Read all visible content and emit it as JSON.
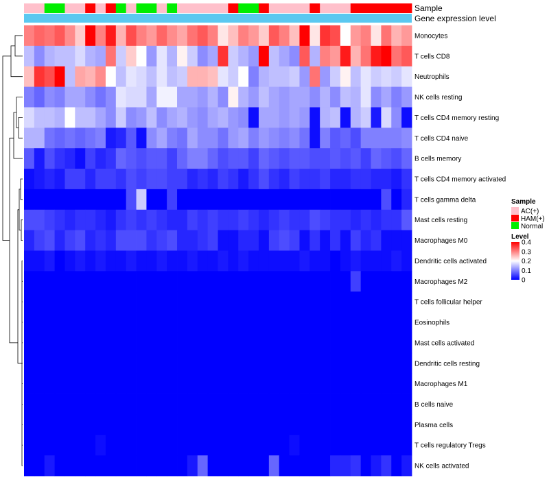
{
  "chart_data": {
    "type": "heatmap",
    "annotation_labels": [
      "Sample",
      "Gene expression level"
    ],
    "rows": [
      "Monocytes",
      "T cells CD8",
      "Neutrophils",
      "NK cells resting",
      "T cells CD4 memory resting",
      "T cells CD4 naive",
      "B cells memory",
      "T cells CD4 memory activated",
      "T cells gamma delta",
      "Mast cells resting",
      "Macrophages M0",
      "Dendritic cells activated",
      "Macrophages M2",
      "T cells follicular helper",
      "Eosinophils",
      "Mast cells activated",
      "Dendritic cells resting",
      "Macrophages M1",
      "B cells naive",
      "Plasma cells",
      "T cells regulatory  Tregs",
      "NK cells activated"
    ],
    "samples": [
      "AC(+)",
      "AC(+)",
      "Normal",
      "Normal",
      "AC(+)",
      "AC(+)",
      "HAM(+)",
      "AC(+)",
      "HAM(+)",
      "Normal",
      "AC(+)",
      "Normal",
      "Normal",
      "AC(+)",
      "Normal",
      "AC(+)",
      "AC(+)",
      "AC(+)",
      "AC(+)",
      "AC(+)",
      "HAM(+)",
      "Normal",
      "Normal",
      "HAM(+)",
      "AC(+)",
      "AC(+)",
      "AC(+)",
      "AC(+)",
      "HAM(+)",
      "AC(+)",
      "AC(+)",
      "AC(+)",
      "HAM(+)",
      "HAM(+)",
      "HAM(+)",
      "HAM(+)",
      "HAM(+)",
      "HAM(+)"
    ],
    "values": [
      [
        0.3,
        0.32,
        0.31,
        0.33,
        0.29,
        0.24,
        0.4,
        0.3,
        0.38,
        0.26,
        0.34,
        0.3,
        0.28,
        0.32,
        0.29,
        0.27,
        0.31,
        0.33,
        0.3,
        0.22,
        0.25,
        0.3,
        0.28,
        0.24,
        0.33,
        0.3,
        0.25,
        0.4,
        0.22,
        0.36,
        0.34,
        0.2,
        0.28,
        0.3,
        0.22,
        0.31,
        0.26,
        0.28
      ],
      [
        0.15,
        0.11,
        0.14,
        0.15,
        0.15,
        0.17,
        0.14,
        0.13,
        0.31,
        0.16,
        0.24,
        0.2,
        0.12,
        0.18,
        0.14,
        0.21,
        0.16,
        0.11,
        0.13,
        0.36,
        0.16,
        0.14,
        0.12,
        0.4,
        0.15,
        0.13,
        0.11,
        0.33,
        0.14,
        0.3,
        0.28,
        0.38,
        0.26,
        0.31,
        0.38,
        0.4,
        0.31,
        0.33
      ],
      [
        0.25,
        0.36,
        0.34,
        0.4,
        0.15,
        0.27,
        0.26,
        0.29,
        0.2,
        0.15,
        0.18,
        0.17,
        0.15,
        0.18,
        0.15,
        0.16,
        0.26,
        0.26,
        0.25,
        0.18,
        0.16,
        0.2,
        0.1,
        0.14,
        0.15,
        0.15,
        0.16,
        0.12,
        0.31,
        0.12,
        0.16,
        0.21,
        0.15,
        0.18,
        0.16,
        0.17,
        0.16,
        0.18
      ],
      [
        0.1,
        0.08,
        0.11,
        0.1,
        0.13,
        0.13,
        0.11,
        0.09,
        0.11,
        0.18,
        0.17,
        0.17,
        0.13,
        0.19,
        0.19,
        0.13,
        0.13,
        0.12,
        0.14,
        0.11,
        0.21,
        0.14,
        0.12,
        0.15,
        0.13,
        0.12,
        0.13,
        0.13,
        0.11,
        0.14,
        0.11,
        0.15,
        0.14,
        0.18,
        0.11,
        0.13,
        0.1,
        0.12
      ],
      [
        0.17,
        0.15,
        0.15,
        0.14,
        0.2,
        0.15,
        0.15,
        0.13,
        0.11,
        0.16,
        0.11,
        0.12,
        0.15,
        0.11,
        0.13,
        0.14,
        0.12,
        0.11,
        0.13,
        0.14,
        0.12,
        0.11,
        0.01,
        0.13,
        0.13,
        0.12,
        0.13,
        0.12,
        0.01,
        0.14,
        0.15,
        0.01,
        0.14,
        0.16,
        0.02,
        0.17,
        0.11,
        0.01
      ],
      [
        0.14,
        0.14,
        0.09,
        0.08,
        0.09,
        0.08,
        0.09,
        0.1,
        0.02,
        0.03,
        0.07,
        0.01,
        0.11,
        0.13,
        0.1,
        0.09,
        0.13,
        0.11,
        0.11,
        0.09,
        0.12,
        0.13,
        0.1,
        0.12,
        0.11,
        0.1,
        0.11,
        0.09,
        0.01,
        0.1,
        0.07,
        0.08,
        0.06,
        0.1,
        0.1,
        0.1,
        0.1,
        0.11
      ],
      [
        0.07,
        0.02,
        0.06,
        0.04,
        0.03,
        0.01,
        0.05,
        0.03,
        0.04,
        0.08,
        0.07,
        0.06,
        0.07,
        0.07,
        0.05,
        0.08,
        0.1,
        0.1,
        0.08,
        0.06,
        0.07,
        0.07,
        0.05,
        0.08,
        0.07,
        0.06,
        0.07,
        0.07,
        0.06,
        0.06,
        0.07,
        0.06,
        0.07,
        0.05,
        0.08,
        0.07,
        0.06,
        0.08
      ],
      [
        0.01,
        0.02,
        0.03,
        0.02,
        0.05,
        0.05,
        0.03,
        0.05,
        0.05,
        0.04,
        0.06,
        0.05,
        0.06,
        0.06,
        0.05,
        0.05,
        0.03,
        0.04,
        0.03,
        0.05,
        0.04,
        0.02,
        0.04,
        0.06,
        0.04,
        0.03,
        0.05,
        0.04,
        0.04,
        0.05,
        0.03,
        0.03,
        0.04,
        0.04,
        0.03,
        0.03,
        0.02,
        0.04
      ],
      [
        0.0,
        0.0,
        0.0,
        0.0,
        0.0,
        0.0,
        0.0,
        0.0,
        0.0,
        0.0,
        0.06,
        0.16,
        0.0,
        0.0,
        0.05,
        0.0,
        0.0,
        0.0,
        0.0,
        0.0,
        0.0,
        0.0,
        0.0,
        0.0,
        0.0,
        0.0,
        0.0,
        0.0,
        0.0,
        0.0,
        0.0,
        0.0,
        0.0,
        0.0,
        0.0,
        0.06,
        0.0,
        0.03
      ],
      [
        0.06,
        0.06,
        0.05,
        0.04,
        0.03,
        0.04,
        0.04,
        0.03,
        0.02,
        0.04,
        0.05,
        0.04,
        0.05,
        0.04,
        0.03,
        0.03,
        0.05,
        0.04,
        0.05,
        0.04,
        0.04,
        0.05,
        0.04,
        0.03,
        0.04,
        0.05,
        0.04,
        0.04,
        0.06,
        0.05,
        0.04,
        0.04,
        0.03,
        0.04,
        0.03,
        0.04,
        0.04,
        0.07
      ],
      [
        0.03,
        0.05,
        0.06,
        0.03,
        0.05,
        0.06,
        0.03,
        0.04,
        0.03,
        0.06,
        0.06,
        0.06,
        0.04,
        0.05,
        0.06,
        0.03,
        0.03,
        0.04,
        0.05,
        0.01,
        0.01,
        0.03,
        0.03,
        0.01,
        0.05,
        0.06,
        0.05,
        0.01,
        0.04,
        0.01,
        0.04,
        0.01,
        0.05,
        0.03,
        0.04,
        0.01,
        0.01,
        0.01
      ],
      [
        0.01,
        0.01,
        0.02,
        0.0,
        0.01,
        0.02,
        0.01,
        0.02,
        0.01,
        0.01,
        0.02,
        0.01,
        0.01,
        0.02,
        0.01,
        0.01,
        0.02,
        0.01,
        0.01,
        0.02,
        0.01,
        0.02,
        0.01,
        0.01,
        0.01,
        0.01,
        0.01,
        0.02,
        0.01,
        0.01,
        0.0,
        0.01,
        0.02,
        0.01,
        0.01,
        0.01,
        0.02,
        0.01
      ],
      [
        0.0,
        0.0,
        0.0,
        0.0,
        0.0,
        0.0,
        0.0,
        0.0,
        0.0,
        0.0,
        0.0,
        0.0,
        0.0,
        0.0,
        0.0,
        0.0,
        0.0,
        0.0,
        0.0,
        0.0,
        0.0,
        0.0,
        0.0,
        0.0,
        0.0,
        0.0,
        0.0,
        0.0,
        0.0,
        0.0,
        0.0,
        0.0,
        0.05,
        0.0,
        0.0,
        0.0,
        0.0,
        0.0
      ],
      [
        0.0,
        0.0,
        0.0,
        0.0,
        0.0,
        0.0,
        0.0,
        0.0,
        0.0,
        0.0,
        0.0,
        0.0,
        0.0,
        0.0,
        0.0,
        0.0,
        0.0,
        0.0,
        0.0,
        0.0,
        0.0,
        0.0,
        0.0,
        0.0,
        0.0,
        0.0,
        0.0,
        0.0,
        0.0,
        0.0,
        0.0,
        0.0,
        0.0,
        0.0,
        0.0,
        0.0,
        0.0,
        0.0
      ],
      [
        0.0,
        0.0,
        0.0,
        0.0,
        0.0,
        0.0,
        0.0,
        0.0,
        0.0,
        0.0,
        0.0,
        0.0,
        0.0,
        0.0,
        0.0,
        0.0,
        0.0,
        0.0,
        0.0,
        0.0,
        0.0,
        0.0,
        0.0,
        0.0,
        0.0,
        0.0,
        0.0,
        0.0,
        0.0,
        0.0,
        0.0,
        0.0,
        0.0,
        0.0,
        0.0,
        0.0,
        0.0,
        0.0
      ],
      [
        0.0,
        0.0,
        0.0,
        0.0,
        0.0,
        0.0,
        0.0,
        0.0,
        0.0,
        0.0,
        0.0,
        0.0,
        0.0,
        0.0,
        0.0,
        0.0,
        0.0,
        0.0,
        0.0,
        0.0,
        0.0,
        0.0,
        0.0,
        0.0,
        0.0,
        0.0,
        0.0,
        0.0,
        0.0,
        0.0,
        0.0,
        0.0,
        0.0,
        0.0,
        0.0,
        0.0,
        0.0,
        0.0
      ],
      [
        0.0,
        0.0,
        0.0,
        0.0,
        0.0,
        0.0,
        0.0,
        0.0,
        0.0,
        0.0,
        0.0,
        0.0,
        0.0,
        0.0,
        0.0,
        0.0,
        0.0,
        0.0,
        0.0,
        0.0,
        0.0,
        0.0,
        0.0,
        0.0,
        0.0,
        0.0,
        0.0,
        0.0,
        0.0,
        0.0,
        0.0,
        0.0,
        0.0,
        0.0,
        0.0,
        0.0,
        0.0,
        0.0
      ],
      [
        0.0,
        0.0,
        0.0,
        0.0,
        0.0,
        0.0,
        0.0,
        0.0,
        0.0,
        0.0,
        0.0,
        0.0,
        0.0,
        0.0,
        0.0,
        0.0,
        0.0,
        0.0,
        0.0,
        0.0,
        0.0,
        0.0,
        0.0,
        0.0,
        0.0,
        0.0,
        0.0,
        0.0,
        0.0,
        0.0,
        0.0,
        0.0,
        0.0,
        0.0,
        0.0,
        0.0,
        0.0,
        0.0
      ],
      [
        0.0,
        0.0,
        0.0,
        0.0,
        0.0,
        0.0,
        0.0,
        0.0,
        0.0,
        0.0,
        0.0,
        0.0,
        0.0,
        0.0,
        0.0,
        0.0,
        0.0,
        0.0,
        0.0,
        0.0,
        0.0,
        0.0,
        0.0,
        0.0,
        0.0,
        0.0,
        0.0,
        0.0,
        0.0,
        0.0,
        0.0,
        0.0,
        0.0,
        0.0,
        0.0,
        0.0,
        0.0,
        0.0
      ],
      [
        0.0,
        0.0,
        0.0,
        0.0,
        0.0,
        0.0,
        0.0,
        0.0,
        0.0,
        0.0,
        0.0,
        0.0,
        0.0,
        0.0,
        0.0,
        0.0,
        0.0,
        0.0,
        0.0,
        0.0,
        0.0,
        0.0,
        0.0,
        0.0,
        0.0,
        0.0,
        0.0,
        0.0,
        0.0,
        0.0,
        0.0,
        0.0,
        0.0,
        0.0,
        0.0,
        0.0,
        0.0,
        0.0
      ],
      [
        0.0,
        0.0,
        0.0,
        0.0,
        0.0,
        0.0,
        0.0,
        0.01,
        0.0,
        0.0,
        0.0,
        0.0,
        0.0,
        0.0,
        0.0,
        0.0,
        0.0,
        0.0,
        0.0,
        0.0,
        0.0,
        0.0,
        0.0,
        0.0,
        0.0,
        0.0,
        0.01,
        0.0,
        0.0,
        0.0,
        0.0,
        0.0,
        0.0,
        0.0,
        0.0,
        0.0,
        0.0,
        0.0
      ],
      [
        0.0,
        0.0,
        0.02,
        0.0,
        0.0,
        0.0,
        0.0,
        0.0,
        0.0,
        0.0,
        0.0,
        0.0,
        0.0,
        0.0,
        0.0,
        0.0,
        0.02,
        0.08,
        0.0,
        0.0,
        0.0,
        0.0,
        0.0,
        0.0,
        0.08,
        0.0,
        0.0,
        0.0,
        0.0,
        0.0,
        0.03,
        0.03,
        0.04,
        0.0,
        0.02,
        0.04,
        0.0,
        0.02
      ]
    ],
    "legend_sample": {
      "title": "Sample",
      "entries": [
        {
          "label": "AC(+)",
          "color": "#FFC0CB"
        },
        {
          "label": "HAM(+)",
          "color": "#FF0000"
        },
        {
          "label": "Normal",
          "color": "#00EE00"
        }
      ]
    },
    "legend_level": {
      "title": "Level",
      "ticks": [
        "0.4",
        "0.3",
        "0.2",
        "0.1",
        "0"
      ],
      "tick_values": [
        0.4,
        0.3,
        0.2,
        0.1,
        0
      ],
      "range": [
        0,
        0.4
      ],
      "colors": {
        "low": "#0000FF",
        "mid": "#FFFFFF",
        "high": "#FF0000"
      }
    },
    "gene_expression_color": "#5BC8F0"
  }
}
